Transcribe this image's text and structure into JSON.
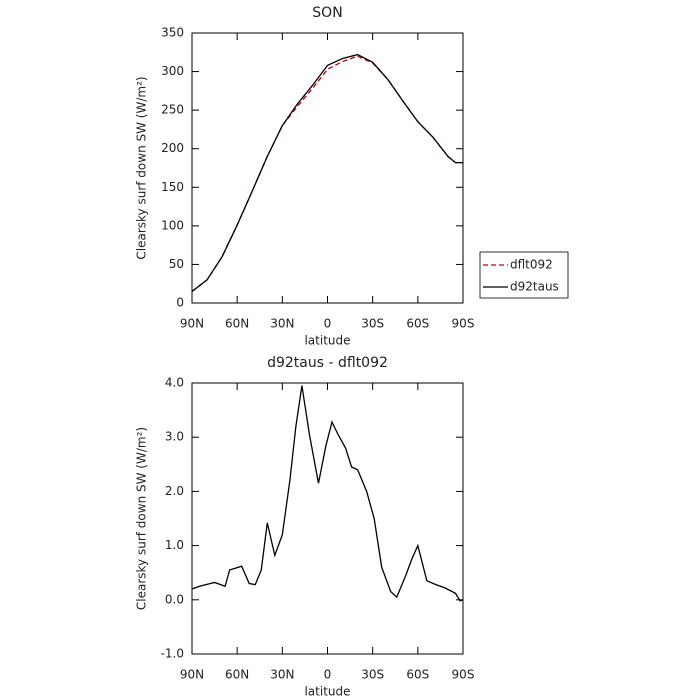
{
  "chart_data": [
    {
      "type": "line",
      "title": "SON",
      "xlabel": "latitude",
      "ylabel": "Clearsky surf down SW (W/m²)",
      "x": [
        90,
        80,
        70,
        60,
        50,
        40,
        30,
        20,
        10,
        0,
        -10,
        -20,
        -30,
        -40,
        -50,
        -60,
        -70,
        -80,
        -85,
        -90
      ],
      "series": [
        {
          "name": "dflt092",
          "color": "#cc0000",
          "dash": true,
          "values": [
            15,
            30,
            60,
            101,
            145,
            190,
            230,
            255,
            278,
            303,
            313,
            320,
            311,
            290,
            262,
            235,
            215,
            190,
            182,
            182
          ]
        },
        {
          "name": "d92taus",
          "color": "#000000",
          "dash": false,
          "values": [
            15,
            30,
            60,
            101,
            145,
            190,
            230,
            258,
            282,
            308,
            317,
            322,
            312,
            290,
            262,
            235,
            215,
            190,
            182,
            182
          ]
        }
      ],
      "xlim": [
        90,
        -90
      ],
      "xticks": [
        {
          "value": 90,
          "label": "90N"
        },
        {
          "value": 60,
          "label": "60N"
        },
        {
          "value": 30,
          "label": "30N"
        },
        0,
        {
          "value": -30,
          "label": "30S"
        },
        {
          "value": -60,
          "label": "60S"
        },
        {
          "value": -90,
          "label": "90S"
        }
      ],
      "ylim": [
        0,
        350
      ],
      "yticks": [
        0,
        50,
        100,
        150,
        200,
        250,
        300,
        350
      ],
      "legend": "right"
    },
    {
      "type": "line",
      "title": "d92taus - dflt092",
      "xlabel": "latitude",
      "ylabel": "Clearsky surf down SW (W/m²)",
      "x": [
        90,
        85,
        75,
        68,
        65,
        57,
        52,
        48,
        44,
        40,
        35,
        30,
        25,
        21,
        17,
        12,
        6,
        1,
        -3,
        -7,
        -12,
        -16,
        -20,
        -26,
        -31,
        -36,
        -42,
        -46,
        -52,
        -56,
        -60,
        -66,
        -72,
        -78,
        -85,
        -88,
        -90
      ],
      "series": [
        {
          "name": "d92taus - dflt092",
          "color": "#000000",
          "dash": false,
          "values": [
            0.2,
            0.25,
            0.32,
            0.25,
            0.55,
            0.62,
            0.3,
            0.28,
            0.55,
            1.42,
            0.82,
            1.2,
            2.2,
            3.2,
            3.95,
            3.05,
            2.15,
            2.85,
            3.28,
            3.05,
            2.8,
            2.45,
            2.4,
            2.0,
            1.5,
            0.6,
            0.15,
            0.05,
            0.45,
            0.75,
            1.0,
            0.35,
            0.28,
            0.22,
            0.12,
            -0.02,
            0.0
          ]
        }
      ],
      "xlim": [
        90,
        -90
      ],
      "xticks": [
        {
          "value": 90,
          "label": "90N"
        },
        {
          "value": 60,
          "label": "60N"
        },
        {
          "value": 30,
          "label": "30N"
        },
        0,
        {
          "value": -30,
          "label": "30S"
        },
        {
          "value": -60,
          "label": "60S"
        },
        {
          "value": -90,
          "label": "90S"
        }
      ],
      "ylim": [
        -1,
        4
      ],
      "yticks": [
        {
          "value": -1,
          "label": "-1.0"
        },
        {
          "value": 0,
          "label": "0.0"
        },
        {
          "value": 1,
          "label": "1.0"
        },
        {
          "value": 2,
          "label": "2.0"
        },
        {
          "value": 3,
          "label": "3.0"
        },
        {
          "value": 4,
          "label": "4.0"
        }
      ]
    }
  ]
}
